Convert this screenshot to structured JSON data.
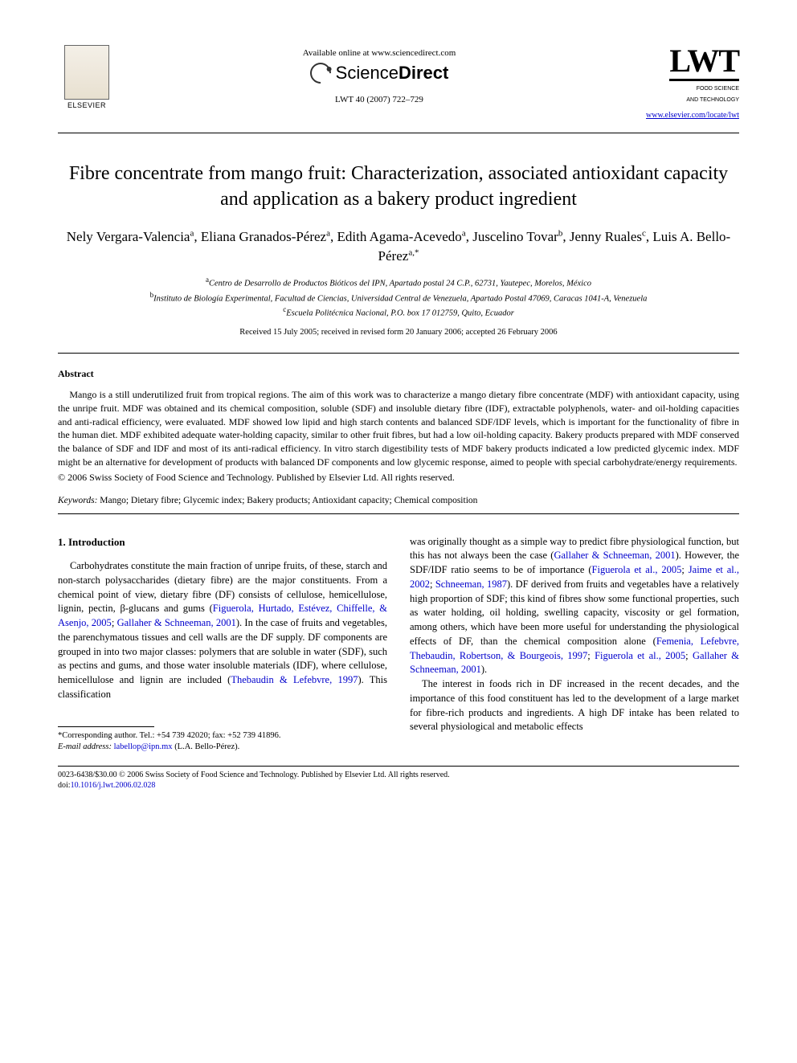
{
  "header": {
    "elsevier_label": "ELSEVIER",
    "available_online": "Available online at www.sciencedirect.com",
    "sciencedirect_plain": "Science",
    "sciencedirect_bold": "Direct",
    "journal_ref": "LWT 40 (2007) 722–729",
    "lwt_letters": "LWT",
    "lwt_sub1": "FOOD SCIENCE",
    "lwt_sub2": "AND TECHNOLOGY",
    "journal_url": "www.elsevier.com/locate/lwt"
  },
  "title": "Fibre concentrate from mango fruit: Characterization, associated antioxidant capacity and application as a bakery product ingredient",
  "authors": [
    {
      "name": "Nely Vergara-Valencia",
      "aff": "a"
    },
    {
      "name": "Eliana Granados-Pérez",
      "aff": "a"
    },
    {
      "name": "Edith Agama-Acevedo",
      "aff": "a"
    },
    {
      "name": "Juscelino Tovar",
      "aff": "b"
    },
    {
      "name": "Jenny Ruales",
      "aff": "c"
    },
    {
      "name": "Luis A. Bello-Pérez",
      "aff": "a,*"
    }
  ],
  "affiliations": {
    "a": "Centro de Desarrollo de Productos Bióticos del IPN, Apartado postal 24 C.P., 62731, Yautepec, Morelos, México",
    "b": "Instituto de Biología Experimental, Facultad de Ciencias, Universidad Central de Venezuela, Apartado Postal 47069, Caracas 1041-A, Venezuela",
    "c": "Escuela Politécnica Nacional, P.O. box 17 012759, Quito, Ecuador"
  },
  "history": "Received 15 July 2005; received in revised form 20 January 2006; accepted 26 February 2006",
  "abstract": {
    "heading": "Abstract",
    "body": "Mango is a still underutilized fruit from tropical regions. The aim of this work was to characterize a mango dietary fibre concentrate (MDF) with antioxidant capacity, using the unripe fruit. MDF was obtained and its chemical composition, soluble (SDF) and insoluble dietary fibre (IDF), extractable polyphenols, water- and oil-holding capacities and anti-radical efficiency, were evaluated. MDF showed low lipid and high starch contents and balanced SDF/IDF levels, which is important for the functionality of fibre in the human diet. MDF exhibited adequate water-holding capacity, similar to other fruit fibres, but had a low oil-holding capacity. Bakery products prepared with MDF conserved the balance of SDF and IDF and most of its anti-radical efficiency. In vitro starch digestibility tests of MDF bakery products indicated a low predicted glycemic index. MDF might be an alternative for development of products with balanced DF components and low glycemic response, aimed to people with special carbohydrate/energy requirements.",
    "copyright": "© 2006 Swiss Society of Food Science and Technology. Published by Elsevier Ltd. All rights reserved."
  },
  "keywords": {
    "label": "Keywords:",
    "text": " Mango; Dietary fibre; Glycemic index; Bakery products; Antioxidant capacity; Chemical composition"
  },
  "body": {
    "section1_heading": "1.  Introduction",
    "col1_para1_a": "Carbohydrates constitute the main fraction of unripe fruits, of these, starch and non-starch polysaccharides (dietary fibre) are the major constituents. From a chemical point of view, dietary fibre (DF) consists of cellulose, hemicellulose, lignin, pectin, β-glucans and gums (",
    "col1_cite1": "Figuerola, Hurtado, Estévez, Chiffelle, & Asenjo, 2005",
    "col1_sep1": "; ",
    "col1_cite2": "Gallaher & Schneeman, 2001",
    "col1_para1_b": "). In the case of fruits and vegetables, the parenchymatous tissues and cell walls are the DF supply. DF components are grouped in into two major classes: polymers that are soluble in water (SDF), such as pectins and gums, and those water insoluble materials (IDF), where cellulose, hemicellulose and lignin are included (",
    "col1_cite3": "Thebaudin & Lefebvre, 1997",
    "col1_para1_c": "). This classification",
    "col2_para1_a": "was originally thought as a simple way to predict fibre physiological function, but this has not always been the case (",
    "col2_cite1": "Gallaher & Schneeman, 2001",
    "col2_para1_b": "). However, the SDF/IDF ratio seems to be of importance (",
    "col2_cite2": "Figuerola et al., 2005",
    "col2_sep1": "; ",
    "col2_cite3": "Jaime et al., 2002",
    "col2_sep2": "; ",
    "col2_cite4": "Schneeman, 1987",
    "col2_para1_c": "). DF derived from fruits and vegetables have a relatively high proportion of SDF; this kind of fibres show some functional properties, such as water holding, oil holding, swelling capacity, viscosity or gel formation, among others, which have been more useful for understanding the physiological effects of DF, than the chemical composition alone (",
    "col2_cite5": "Femenia, Lefebvre, Thebaudin, Robertson, & Bourgeois, 1997",
    "col2_sep3": "; ",
    "col2_cite6": "Figuerola et al., 2005",
    "col2_sep4": "; ",
    "col2_cite7": "Gallaher & Schneeman, 2001",
    "col2_para1_d": ").",
    "col2_para2": "The interest in foods rich in DF increased in the recent decades, and the importance of this food constituent has led to the development of a large market for fibre-rich products and ingredients. A high DF intake has been related to several physiological and metabolic effects"
  },
  "footnote": {
    "corr": "*Corresponding author. Tel.: +54 739 42020; fax: +52 739 41896.",
    "email_label": "E-mail address:",
    "email": " labellop@ipn.mx ",
    "email_tail": "(L.A. Bello-Pérez)."
  },
  "footer": {
    "issn_line": "0023-6438/$30.00 © 2006 Swiss Society of Food Science and Technology. Published by Elsevier Ltd. All rights reserved.",
    "doi_label": "doi:",
    "doi": "10.1016/j.lwt.2006.02.028"
  },
  "colors": {
    "link": "#0000cc",
    "text": "#000000",
    "background": "#ffffff"
  }
}
